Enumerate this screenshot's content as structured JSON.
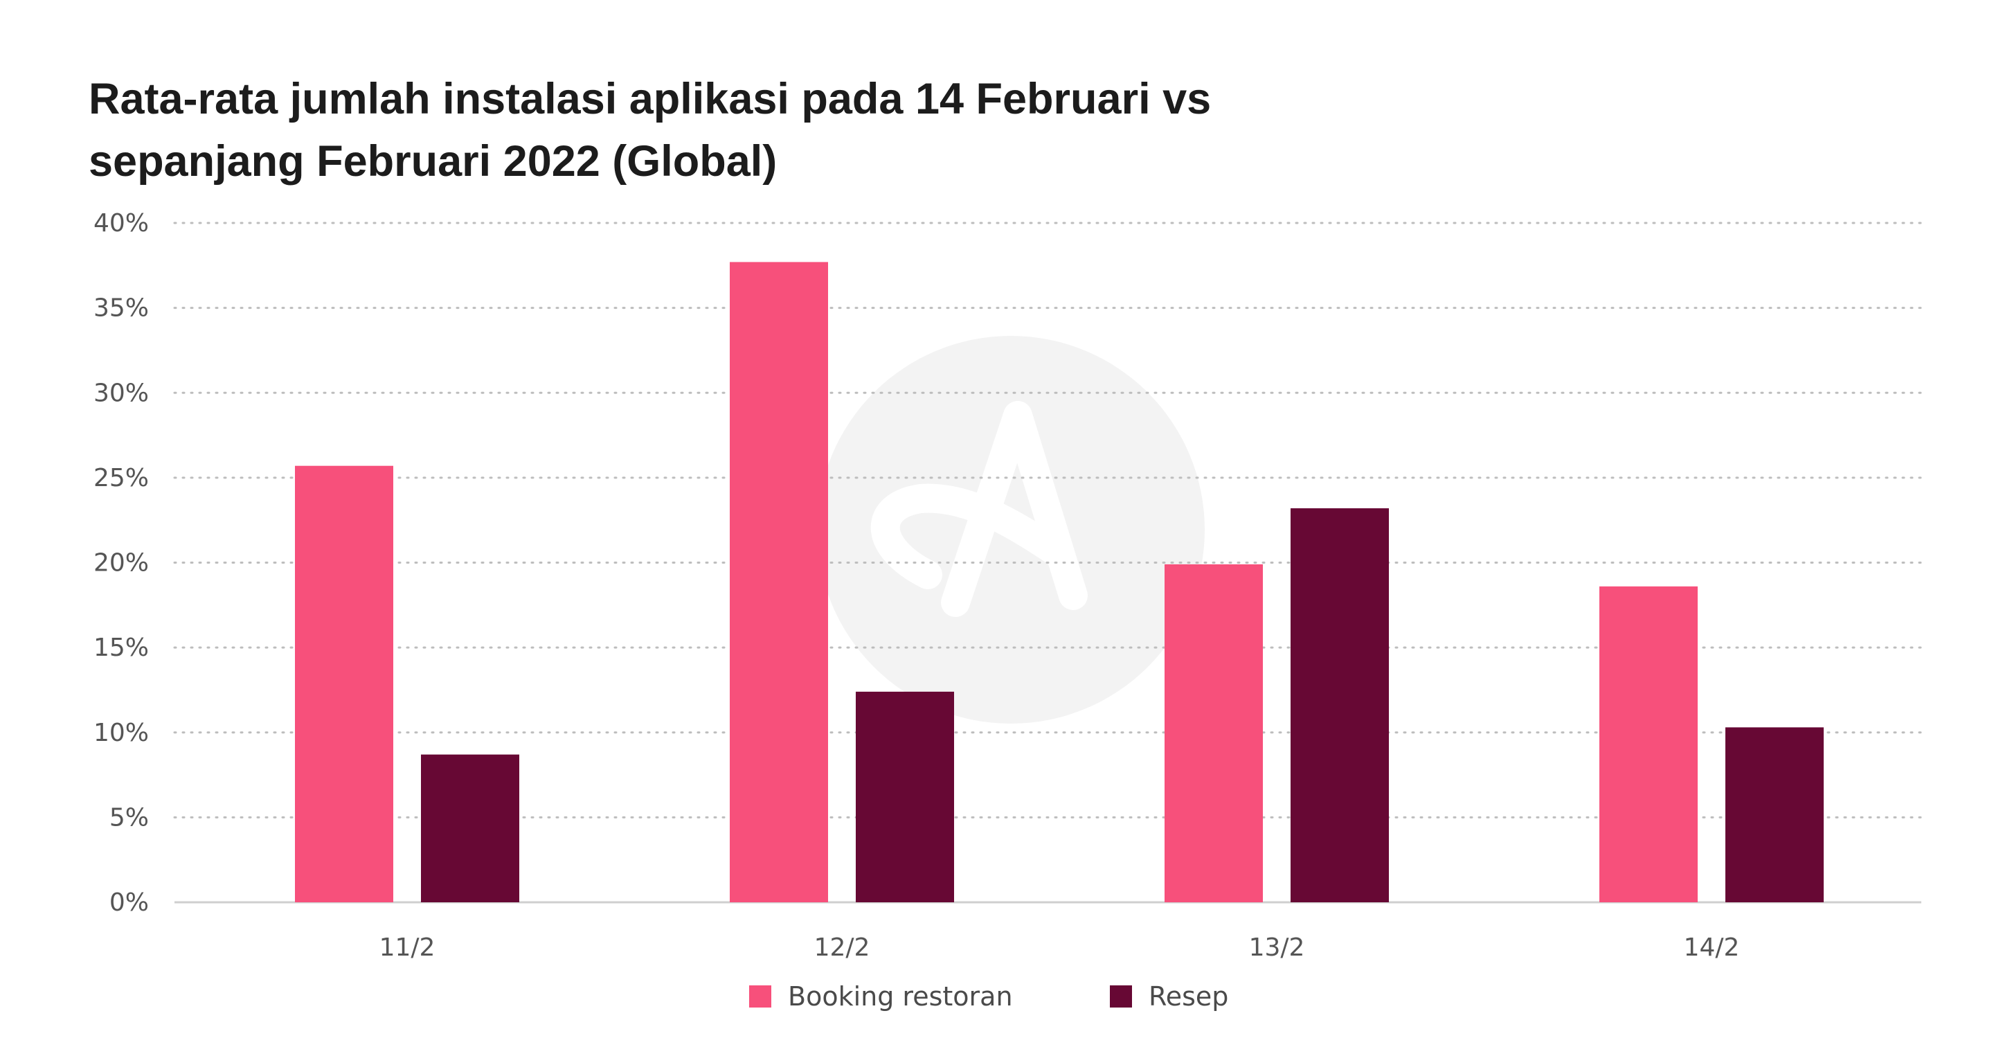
{
  "chart_data": {
    "type": "bar",
    "title_lines": [
      "Rata-rata jumlah instalasi aplikasi pada 14 Februari vs",
      "sepanjang Februari 2022 (Global)"
    ],
    "categories": [
      "11/2",
      "12/2",
      "13/2",
      "14/2"
    ],
    "series": [
      {
        "name": "Booking restoran",
        "color": "#f7507b",
        "values": [
          25.7,
          37.7,
          19.9,
          18.6
        ]
      },
      {
        "name": "Resep",
        "color": "#670834",
        "values": [
          8.7,
          12.4,
          23.2,
          10.3
        ]
      }
    ],
    "ylim": [
      0,
      40
    ],
    "yticks": [
      0,
      5,
      10,
      15,
      20,
      25,
      30,
      35,
      40
    ],
    "ytick_labels": [
      "0%",
      "5%",
      "10%",
      "15%",
      "20%",
      "25%",
      "30%",
      "35%",
      "40%"
    ],
    "grid": true,
    "grid_style": "dotted",
    "legend_position": "bottom-center",
    "xlabel": "",
    "ylabel": ""
  }
}
